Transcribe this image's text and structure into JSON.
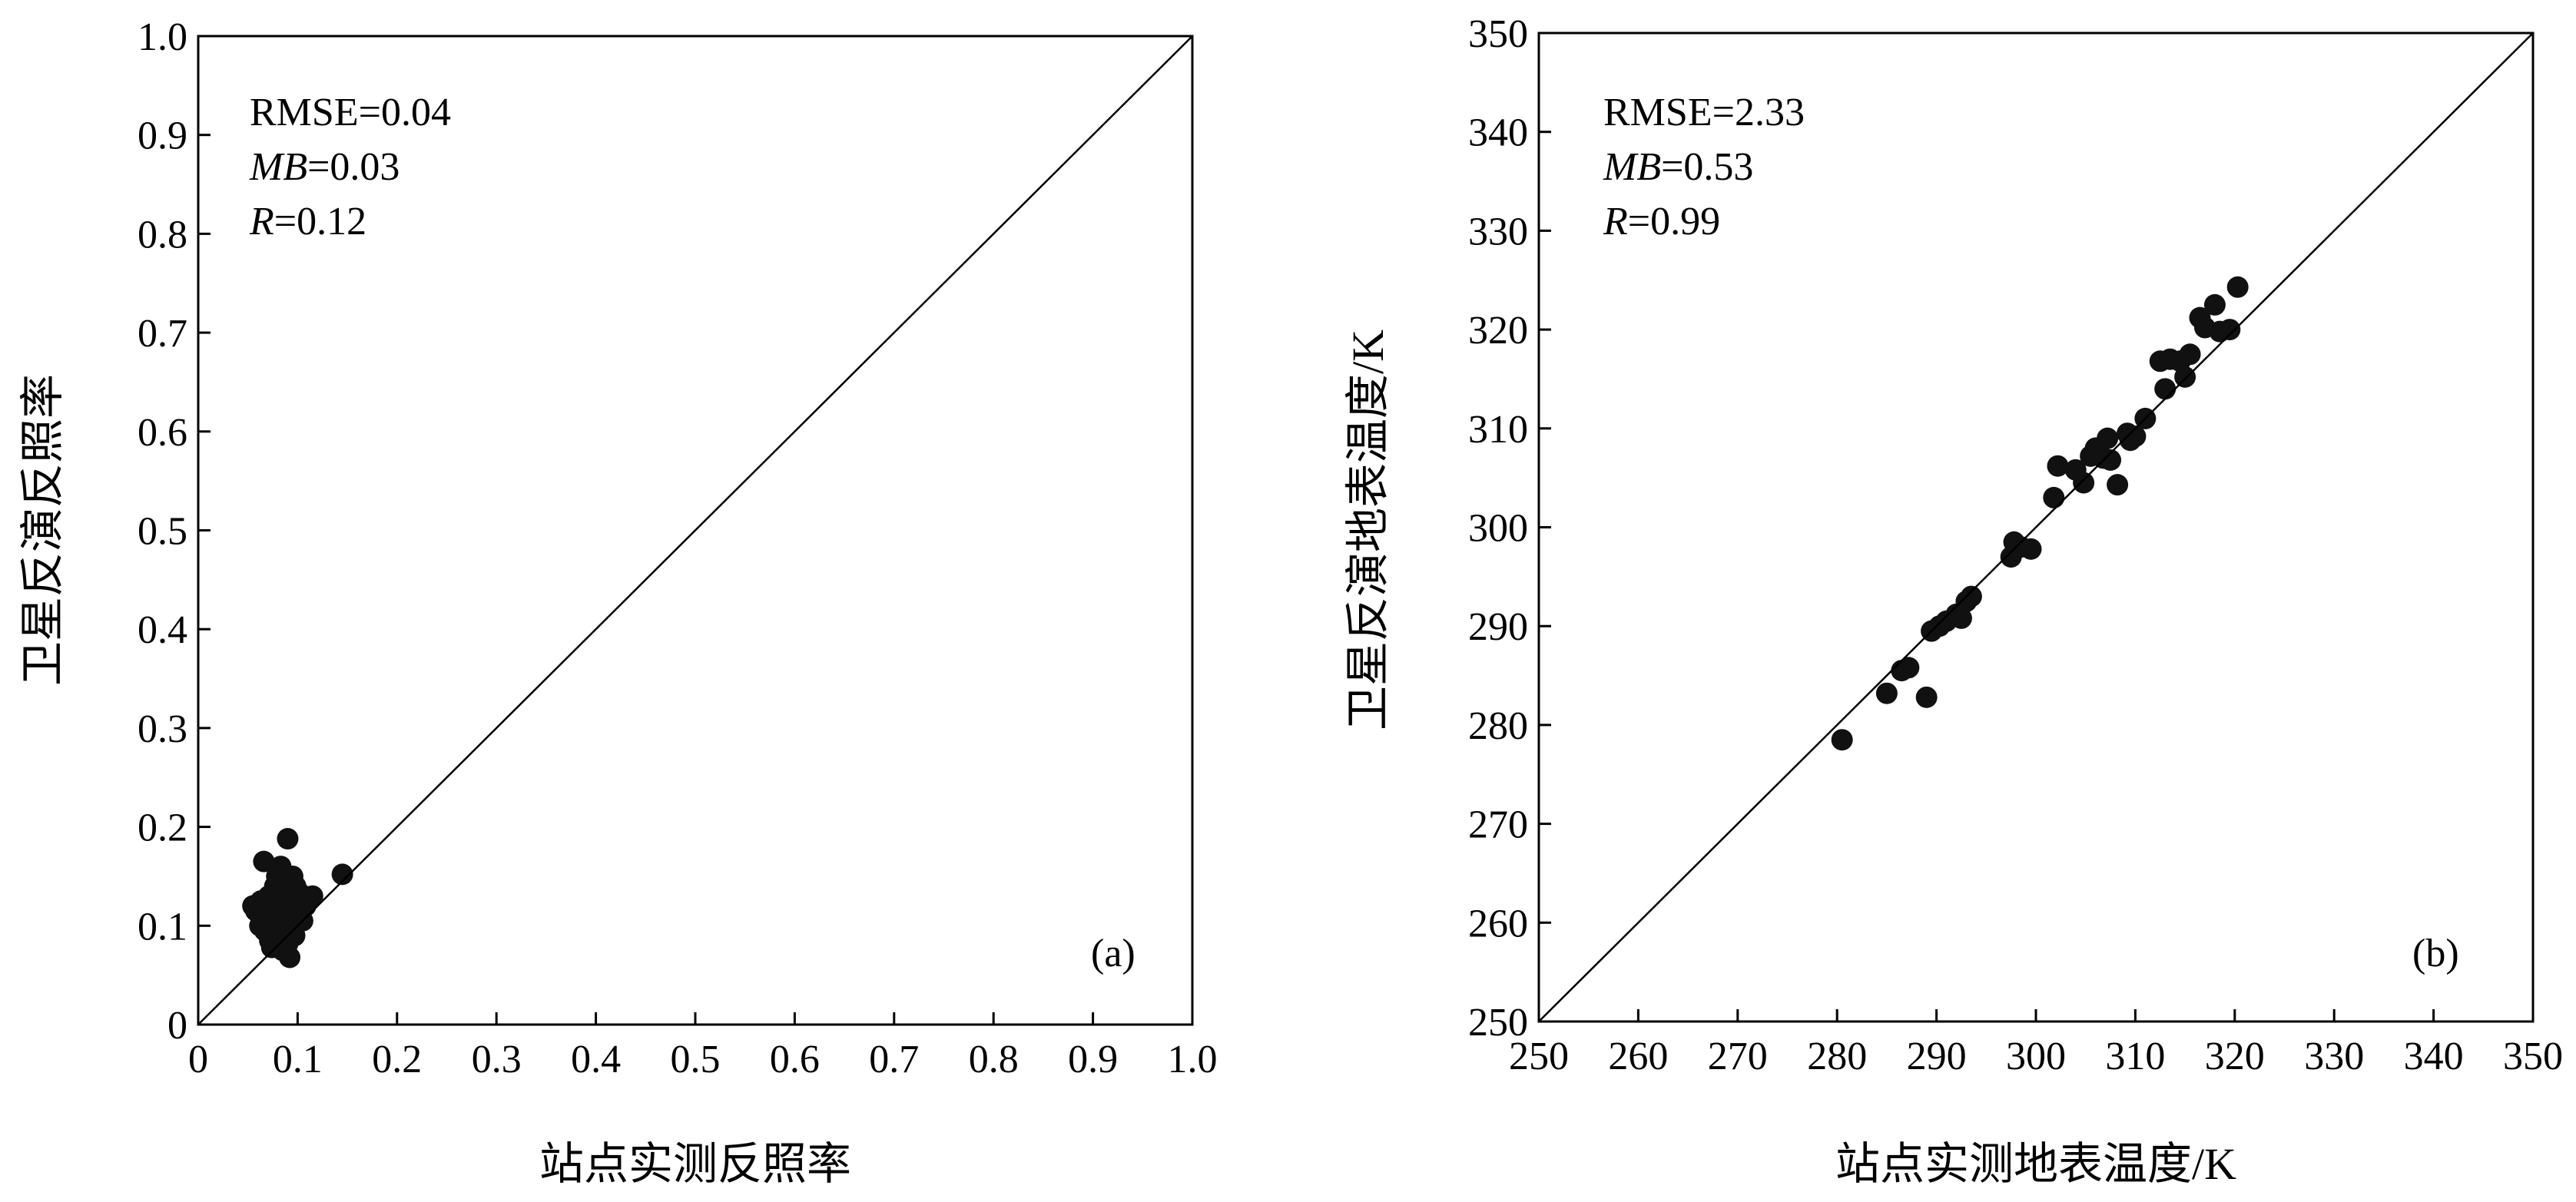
{
  "chart_data": [
    {
      "type": "scatter",
      "panel_label": "(a)",
      "xlabel": "站点实测反照率",
      "ylabel": "卫星反演反照率",
      "xlim": [
        0,
        1.0
      ],
      "ylim": [
        0,
        1.0
      ],
      "x_ticks": [
        "0",
        "0.1",
        "0.2",
        "0.3",
        "0.4",
        "0.5",
        "0.6",
        "0.7",
        "0.8",
        "0.9",
        "1.0"
      ],
      "y_ticks": [
        "0",
        "0.1",
        "0.2",
        "0.3",
        "0.4",
        "0.5",
        "0.6",
        "0.7",
        "0.8",
        "0.9",
        "1.0"
      ],
      "one_to_one_line": true,
      "grid": false,
      "stats": {
        "rmse_label": "RMSE",
        "rmse": "0.04",
        "mb_label": "MB",
        "mb": "0.03",
        "r_label": "R",
        "r": "0.12"
      },
      "points": [
        {
          "x": 0.055,
          "y": 0.12
        },
        {
          "x": 0.058,
          "y": 0.115
        },
        {
          "x": 0.062,
          "y": 0.1
        },
        {
          "x": 0.063,
          "y": 0.125
        },
        {
          "x": 0.065,
          "y": 0.11
        },
        {
          "x": 0.066,
          "y": 0.165
        },
        {
          "x": 0.067,
          "y": 0.095
        },
        {
          "x": 0.068,
          "y": 0.118
        },
        {
          "x": 0.07,
          "y": 0.105
        },
        {
          "x": 0.071,
          "y": 0.13
        },
        {
          "x": 0.072,
          "y": 0.085
        },
        {
          "x": 0.073,
          "y": 0.112
        },
        {
          "x": 0.074,
          "y": 0.078
        },
        {
          "x": 0.075,
          "y": 0.12
        },
        {
          "x": 0.076,
          "y": 0.098
        },
        {
          "x": 0.077,
          "y": 0.14
        },
        {
          "x": 0.078,
          "y": 0.108
        },
        {
          "x": 0.079,
          "y": 0.15
        },
        {
          "x": 0.08,
          "y": 0.088
        },
        {
          "x": 0.081,
          "y": 0.125
        },
        {
          "x": 0.082,
          "y": 0.102
        },
        {
          "x": 0.083,
          "y": 0.16
        },
        {
          "x": 0.084,
          "y": 0.115
        },
        {
          "x": 0.085,
          "y": 0.075
        },
        {
          "x": 0.086,
          "y": 0.135
        },
        {
          "x": 0.087,
          "y": 0.095
        },
        {
          "x": 0.088,
          "y": 0.12
        },
        {
          "x": 0.089,
          "y": 0.145
        },
        {
          "x": 0.09,
          "y": 0.188
        },
        {
          "x": 0.09,
          "y": 0.082
        },
        {
          "x": 0.091,
          "y": 0.11
        },
        {
          "x": 0.092,
          "y": 0.068
        },
        {
          "x": 0.093,
          "y": 0.13
        },
        {
          "x": 0.094,
          "y": 0.1
        },
        {
          "x": 0.095,
          "y": 0.15
        },
        {
          "x": 0.096,
          "y": 0.12
        },
        {
          "x": 0.097,
          "y": 0.09
        },
        {
          "x": 0.098,
          "y": 0.14
        },
        {
          "x": 0.099,
          "y": 0.11
        },
        {
          "x": 0.1,
          "y": 0.125
        },
        {
          "x": 0.102,
          "y": 0.115
        },
        {
          "x": 0.103,
          "y": 0.132
        },
        {
          "x": 0.105,
          "y": 0.105
        },
        {
          "x": 0.108,
          "y": 0.12
        },
        {
          "x": 0.115,
          "y": 0.13
        },
        {
          "x": 0.145,
          "y": 0.152
        }
      ]
    },
    {
      "type": "scatter",
      "panel_label": "(b)",
      "xlabel": "站点实测地表温度/K",
      "ylabel": "卫星反演地表温度/K",
      "xlim": [
        250,
        350
      ],
      "ylim": [
        250,
        350
      ],
      "x_ticks": [
        "250",
        "260",
        "270",
        "280",
        "290",
        "300",
        "310",
        "320",
        "330",
        "340",
        "350"
      ],
      "y_ticks": [
        "250",
        "260",
        "270",
        "280",
        "290",
        "300",
        "310",
        "320",
        "330",
        "340",
        "350"
      ],
      "one_to_one_line": true,
      "grid": false,
      "stats": {
        "rmse_label": "RMSE",
        "rmse": "2.33",
        "mb_label": "MB",
        "mb": "0.53",
        "r_label": "R",
        "r": "0.99"
      },
      "points": [
        {
          "x": 280.5,
          "y": 278.5
        },
        {
          "x": 285.0,
          "y": 283.2
        },
        {
          "x": 286.5,
          "y": 285.5
        },
        {
          "x": 287.2,
          "y": 285.8
        },
        {
          "x": 289.0,
          "y": 282.8
        },
        {
          "x": 289.5,
          "y": 289.5
        },
        {
          "x": 290.3,
          "y": 290.0
        },
        {
          "x": 291.0,
          "y": 290.5
        },
        {
          "x": 292.0,
          "y": 291.2
        },
        {
          "x": 292.5,
          "y": 290.8
        },
        {
          "x": 293.0,
          "y": 292.5
        },
        {
          "x": 293.5,
          "y": 293.0
        },
        {
          "x": 297.5,
          "y": 297.0
        },
        {
          "x": 297.8,
          "y": 298.5
        },
        {
          "x": 298.5,
          "y": 298.0
        },
        {
          "x": 299.5,
          "y": 297.8
        },
        {
          "x": 301.8,
          "y": 303.0
        },
        {
          "x": 302.2,
          "y": 306.2
        },
        {
          "x": 304.0,
          "y": 305.8
        },
        {
          "x": 304.8,
          "y": 304.5
        },
        {
          "x": 305.5,
          "y": 307.2
        },
        {
          "x": 306.0,
          "y": 308.0
        },
        {
          "x": 306.8,
          "y": 307.0
        },
        {
          "x": 307.2,
          "y": 309.0
        },
        {
          "x": 307.5,
          "y": 306.8
        },
        {
          "x": 308.2,
          "y": 304.3
        },
        {
          "x": 309.2,
          "y": 309.5
        },
        {
          "x": 309.5,
          "y": 308.8
        },
        {
          "x": 310.0,
          "y": 309.2
        },
        {
          "x": 311.0,
          "y": 311.0
        },
        {
          "x": 312.5,
          "y": 316.8
        },
        {
          "x": 313.0,
          "y": 314.0
        },
        {
          "x": 313.5,
          "y": 317.0
        },
        {
          "x": 314.5,
          "y": 316.8
        },
        {
          "x": 315.0,
          "y": 315.2
        },
        {
          "x": 315.5,
          "y": 317.5
        },
        {
          "x": 316.5,
          "y": 321.2
        },
        {
          "x": 317.0,
          "y": 320.2
        },
        {
          "x": 318.0,
          "y": 322.5
        },
        {
          "x": 318.5,
          "y": 319.8
        },
        {
          "x": 319.5,
          "y": 320.0
        },
        {
          "x": 320.3,
          "y": 324.3
        }
      ]
    }
  ]
}
